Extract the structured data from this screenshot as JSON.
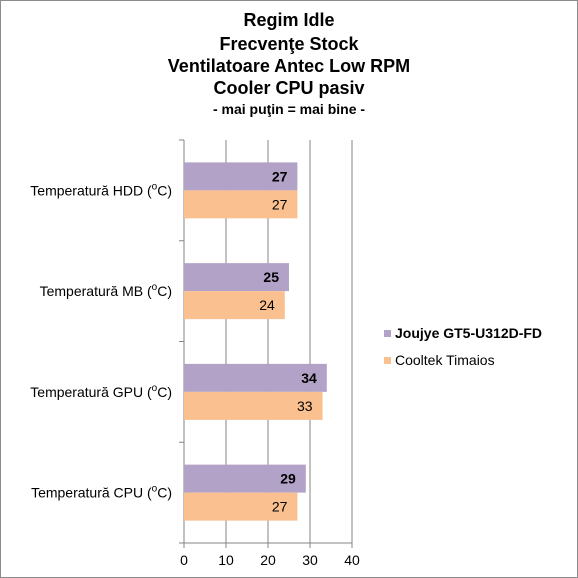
{
  "chart_data": {
    "type": "bar",
    "orientation": "horizontal",
    "title_lines": [
      "Regim Idle",
      "Frecvenţe Stock",
      "Ventilatoare Antec Low RPM",
      "Cooler CPU pasiv",
      "- mai puţin = mai bine -"
    ],
    "categories": [
      {
        "text": "Temperatură  HDD (",
        "sup": "o",
        "unit": "C)"
      },
      {
        "text": "Temperatură  MB (",
        "sup": "o",
        "unit": "C)"
      },
      {
        "text": "Temperatură  GPU (",
        "sup": "o",
        "unit": "C)"
      },
      {
        "text": "Temperatură  CPU (",
        "sup": "o",
        "unit": "C)"
      }
    ],
    "series": [
      {
        "name": "Joujye GT5-U312D-FD",
        "color": "#b3a2c7",
        "values": [
          27,
          25,
          34,
          29
        ],
        "bold": true
      },
      {
        "name": "Cooltek Timaios",
        "color": "#fac090",
        "values": [
          27,
          24,
          33,
          27
        ],
        "bold": false
      }
    ],
    "xlim": [
      0,
      40
    ],
    "xticks": [
      "0",
      "10",
      "20",
      "30",
      "40"
    ],
    "grid": true,
    "legend_position": "right"
  }
}
